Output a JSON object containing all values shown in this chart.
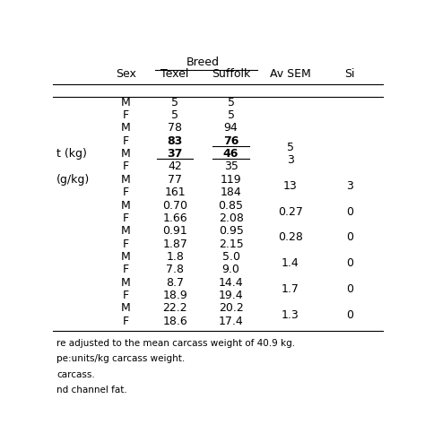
{
  "col_headers_sex": "Sex",
  "col_headers_texel": "Texel",
  "col_headers_suffolk": "Suffolk",
  "col_headers_avsem": "Av SEM",
  "col_headers_si": "Si",
  "breed_label": "Breed",
  "rows": [
    [
      "M",
      "5",
      "5",
      "",
      ""
    ],
    [
      "F",
      "5",
      "5",
      "",
      ""
    ],
    [
      "M",
      "78",
      "94",
      "",
      ""
    ],
    [
      "F",
      "83",
      "76",
      "5",
      ""
    ],
    [
      "M",
      "37",
      "46",
      "3",
      ""
    ],
    [
      "F",
      "42",
      "35",
      "",
      ""
    ],
    [
      "M",
      "77",
      "119",
      "13",
      "3"
    ],
    [
      "F",
      "161",
      "184",
      "",
      ""
    ],
    [
      "M",
      "0.70",
      "0.85",
      "0.27",
      "0"
    ],
    [
      "F",
      "1.66",
      "2.08",
      "",
      ""
    ],
    [
      "M",
      "0.91",
      "0.95",
      "0.28",
      "0"
    ],
    [
      "F",
      "1.87",
      "2.15",
      "",
      ""
    ],
    [
      "M",
      "1.8",
      "5.0",
      "1.4",
      "0"
    ],
    [
      "F",
      "7.8",
      "9.0",
      "",
      ""
    ],
    [
      "M",
      "8.7",
      "14.4",
      "1.7",
      "0"
    ],
    [
      "F",
      "18.9",
      "19.4",
      "",
      ""
    ],
    [
      "M",
      "22.2",
      "20.2",
      "1.3",
      "0"
    ],
    [
      "F",
      "18.6",
      "17.4",
      "",
      ""
    ]
  ],
  "row_left_labels": [
    "",
    "",
    "",
    "",
    "t (kg)",
    "",
    "(g/kg)",
    "",
    "",
    "",
    "",
    "",
    "",
    "",
    "",
    "",
    "",
    ""
  ],
  "bold_rows": [
    3,
    4
  ],
  "bold_cols": [
    1,
    2
  ],
  "underline_suffolk_rows": [
    3
  ],
  "underline_texel_rows": [
    4
  ],
  "underline_suffolk2_rows": [
    4
  ],
  "avsem_pairs": {
    "3": "5",
    "4": "3",
    "6": "13",
    "8": "0.27",
    "10": "0.28",
    "12": "1.4",
    "14": "1.7",
    "16": "1.3"
  },
  "si_pairs": {
    "6": "3",
    "8": "0",
    "10": "0",
    "12": "0",
    "14": "0",
    "16": "0"
  },
  "footnotes": [
    "re adjusted to the mean carcass weight of 40.9 kg.",
    "pe:units/kg carcass weight.",
    "carcass.",
    "nd channel fat."
  ],
  "bg_color": "#ffffff",
  "text_color": "#000000"
}
